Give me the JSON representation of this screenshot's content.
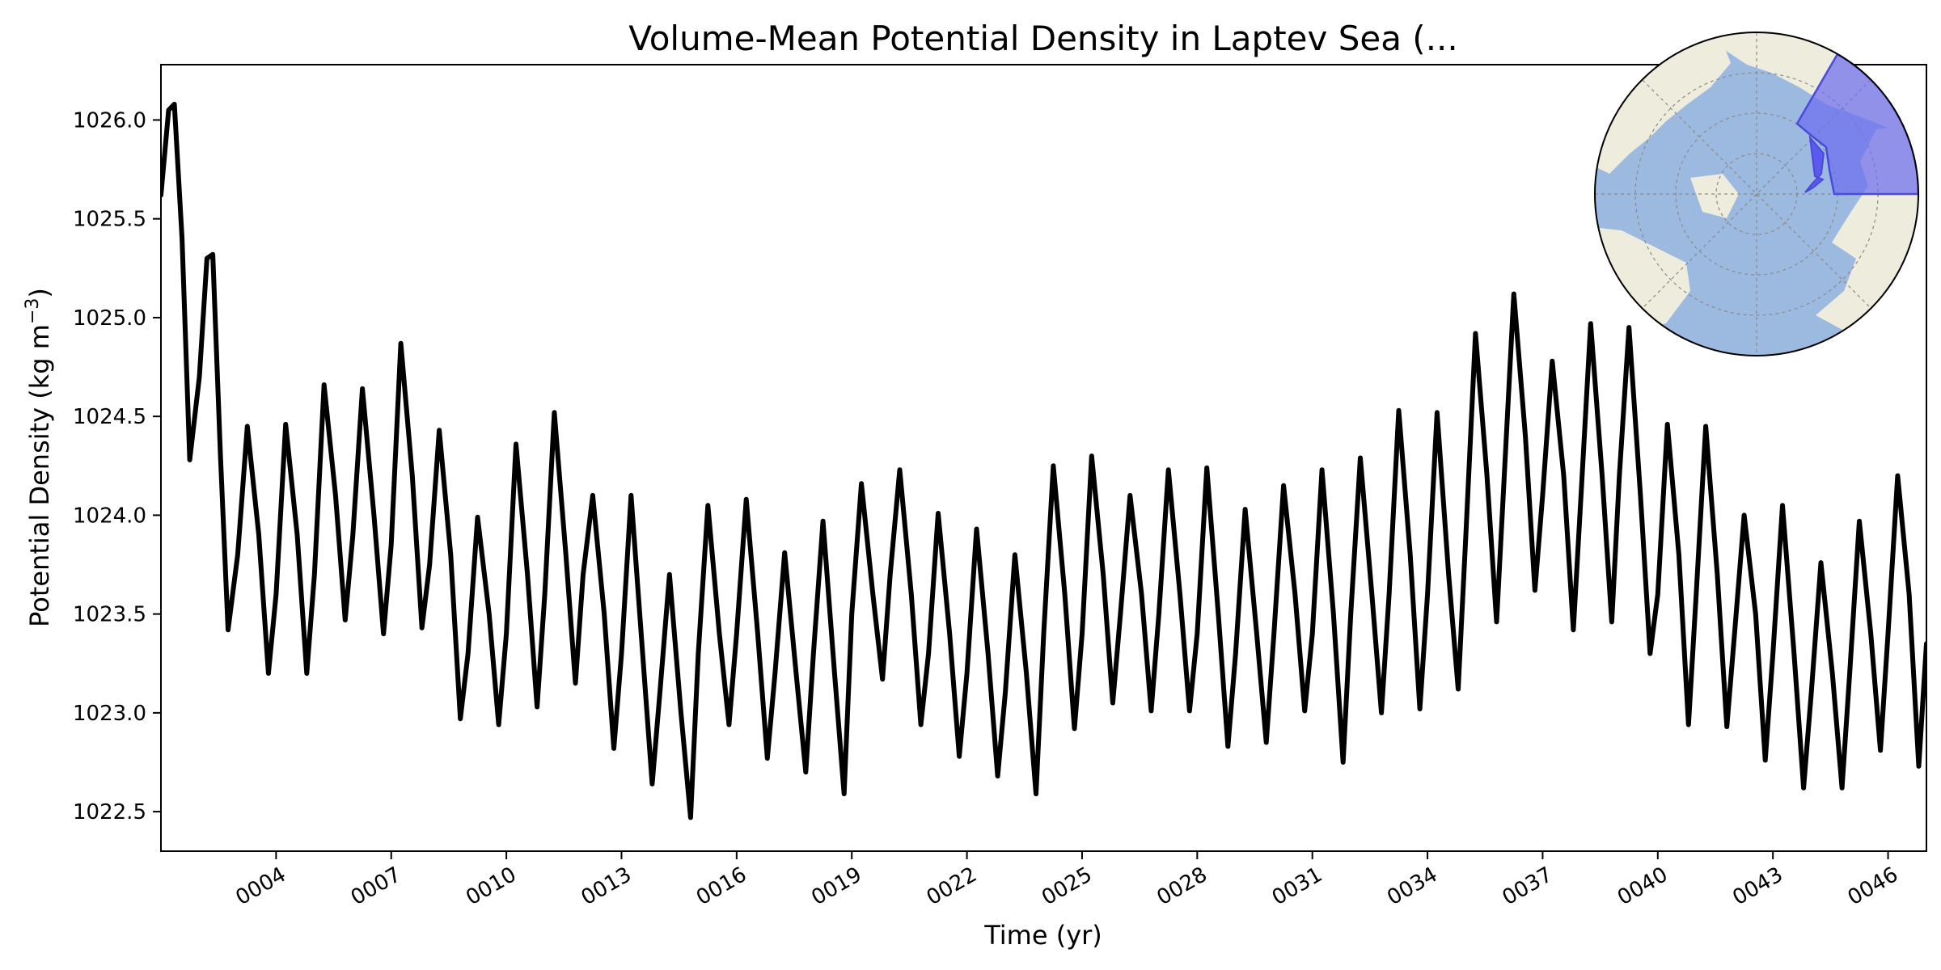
{
  "chart_data": {
    "type": "line",
    "title": "Volume-Mean Potential Density in Laptev Sea (...",
    "xlabel": "Time (yr)",
    "ylabel": "Potential Density (kg m",
    "ylabel_superscript": "−3",
    "ylabel_suffix": ")",
    "xlim": [
      1.0,
      47.0
    ],
    "ylim": [
      1022.3,
      1026.28
    ],
    "xticks": [
      {
        "value": 4,
        "label": "0004"
      },
      {
        "value": 7,
        "label": "0007"
      },
      {
        "value": 10,
        "label": "0010"
      },
      {
        "value": 13,
        "label": "0013"
      },
      {
        "value": 16,
        "label": "0016"
      },
      {
        "value": 19,
        "label": "0019"
      },
      {
        "value": 22,
        "label": "0022"
      },
      {
        "value": 25,
        "label": "0025"
      },
      {
        "value": 28,
        "label": "0028"
      },
      {
        "value": 31,
        "label": "0031"
      },
      {
        "value": 34,
        "label": "0034"
      },
      {
        "value": 37,
        "label": "0037"
      },
      {
        "value": 40,
        "label": "0040"
      },
      {
        "value": 43,
        "label": "0043"
      },
      {
        "value": 46,
        "label": "0046"
      }
    ],
    "yticks": [
      {
        "value": 1022.5,
        "label": "1022.5"
      },
      {
        "value": 1023.0,
        "label": "1023.0"
      },
      {
        "value": 1023.5,
        "label": "1023.5"
      },
      {
        "value": 1024.0,
        "label": "1024.0"
      },
      {
        "value": 1024.5,
        "label": "1024.5"
      },
      {
        "value": 1025.0,
        "label": "1025.0"
      },
      {
        "value": 1025.5,
        "label": "1025.5"
      },
      {
        "value": 1026.0,
        "label": "1026.0"
      }
    ],
    "grid": false,
    "line_color": "#000000",
    "series": [
      {
        "x": [
          1.0,
          1.2,
          1.35,
          1.55,
          1.75,
          2.0,
          2.2,
          2.35,
          2.55,
          2.75,
          3.0,
          3.25,
          3.55,
          3.8,
          4.0,
          4.25,
          4.55,
          4.8,
          5.0,
          5.25,
          5.55,
          5.8,
          6.0,
          6.25,
          6.55,
          6.8,
          7.0,
          7.25,
          7.55,
          7.8,
          8.0,
          8.25,
          8.55,
          8.8,
          9.0,
          9.25,
          9.55,
          9.8,
          10.0,
          10.25,
          10.55,
          10.8,
          11.0,
          11.25,
          11.55,
          11.8,
          12.0,
          12.25,
          12.55,
          12.8,
          13.0,
          13.25,
          13.55,
          13.8,
          14.0,
          14.25,
          14.55,
          14.8,
          15.0,
          15.25,
          15.55,
          15.8,
          16.0,
          16.25,
          16.55,
          16.8,
          17.0,
          17.25,
          17.55,
          17.8,
          18.0,
          18.25,
          18.55,
          18.8,
          19.0,
          19.25,
          19.55,
          19.8,
          20.0,
          20.25,
          20.55,
          20.8,
          21.0,
          21.25,
          21.55,
          21.8,
          22.0,
          22.25,
          22.55,
          22.8,
          23.0,
          23.25,
          23.55,
          23.8,
          24.0,
          24.25,
          24.55,
          24.8,
          25.0,
          25.25,
          25.55,
          25.8,
          26.0,
          26.25,
          26.55,
          26.8,
          27.0,
          27.25,
          27.55,
          27.8,
          28.0,
          28.25,
          28.55,
          28.8,
          29.0,
          29.25,
          29.55,
          29.8,
          30.0,
          30.25,
          30.55,
          30.8,
          31.0,
          31.25,
          31.55,
          31.8,
          32.0,
          32.25,
          32.55,
          32.8,
          33.0,
          33.25,
          33.55,
          33.8,
          34.0,
          34.25,
          34.55,
          34.8,
          35.0,
          35.25,
          35.55,
          35.8,
          36.0,
          36.25,
          36.55,
          36.8,
          37.0,
          37.25,
          37.55,
          37.8,
          38.0,
          38.25,
          38.55,
          38.8,
          39.0,
          39.25,
          39.55,
          39.8,
          40.0,
          40.25,
          40.55,
          40.8,
          41.0,
          41.25,
          41.55,
          41.8,
          42.0,
          42.25,
          42.55,
          42.8,
          43.0,
          43.25,
          43.55,
          43.8,
          44.0,
          44.25,
          44.55,
          44.8,
          45.0,
          45.25,
          45.55,
          45.8,
          46.0,
          46.25,
          46.55,
          46.8,
          47.0
        ],
        "values": [
          1025.62,
          1026.05,
          1026.08,
          1025.4,
          1024.28,
          1024.7,
          1025.3,
          1025.32,
          1024.3,
          1023.42,
          1023.8,
          1024.45,
          1023.9,
          1023.2,
          1023.6,
          1024.46,
          1023.9,
          1023.2,
          1023.7,
          1024.66,
          1024.1,
          1023.47,
          1023.9,
          1024.64,
          1024.0,
          1023.4,
          1023.85,
          1024.87,
          1024.2,
          1023.43,
          1023.75,
          1024.43,
          1023.8,
          1022.97,
          1023.3,
          1023.99,
          1023.5,
          1022.94,
          1023.4,
          1024.36,
          1023.7,
          1023.03,
          1023.6,
          1024.52,
          1023.8,
          1023.15,
          1023.7,
          1024.1,
          1023.5,
          1022.82,
          1023.3,
          1024.1,
          1023.3,
          1022.64,
          1023.1,
          1023.7,
          1023.0,
          1022.47,
          1023.3,
          1024.05,
          1023.4,
          1022.94,
          1023.4,
          1024.08,
          1023.4,
          1022.77,
          1023.2,
          1023.81,
          1023.2,
          1022.7,
          1023.3,
          1023.97,
          1023.2,
          1022.59,
          1023.5,
          1024.16,
          1023.6,
          1023.17,
          1023.7,
          1024.23,
          1023.6,
          1022.94,
          1023.3,
          1024.01,
          1023.4,
          1022.78,
          1023.2,
          1023.93,
          1023.3,
          1022.68,
          1023.1,
          1023.8,
          1023.2,
          1022.59,
          1023.4,
          1024.25,
          1023.6,
          1022.92,
          1023.4,
          1024.3,
          1023.7,
          1023.05,
          1023.5,
          1024.1,
          1023.6,
          1023.01,
          1023.5,
          1024.23,
          1023.6,
          1023.01,
          1023.4,
          1024.24,
          1023.5,
          1022.83,
          1023.3,
          1024.03,
          1023.4,
          1022.85,
          1023.4,
          1024.15,
          1023.6,
          1023.01,
          1023.4,
          1024.23,
          1023.5,
          1022.75,
          1023.5,
          1024.29,
          1023.6,
          1023.0,
          1023.6,
          1024.53,
          1023.8,
          1023.02,
          1023.6,
          1024.52,
          1023.7,
          1023.12,
          1023.9,
          1024.92,
          1024.2,
          1023.46,
          1024.2,
          1025.12,
          1024.4,
          1023.62,
          1024.1,
          1024.78,
          1024.2,
          1023.42,
          1024.1,
          1024.97,
          1024.2,
          1023.46,
          1024.2,
          1024.95,
          1024.1,
          1023.3,
          1023.6,
          1024.46,
          1023.8,
          1022.94,
          1023.6,
          1024.45,
          1023.7,
          1022.93,
          1023.4,
          1024.0,
          1023.5,
          1022.76,
          1023.3,
          1024.05,
          1023.3,
          1022.62,
          1023.1,
          1023.76,
          1023.2,
          1022.62,
          1023.2,
          1023.97,
          1023.4,
          1022.81,
          1023.4,
          1024.2,
          1023.6,
          1022.73,
          1023.35
        ]
      }
    ],
    "inset_map": {
      "projection": "north-polar-stereographic",
      "ocean_color": "#9cb9e0",
      "land_color": "#eeecdc",
      "highlight_color": "#6e6ef0",
      "highlight_region": "Laptev Sea sector"
    }
  }
}
